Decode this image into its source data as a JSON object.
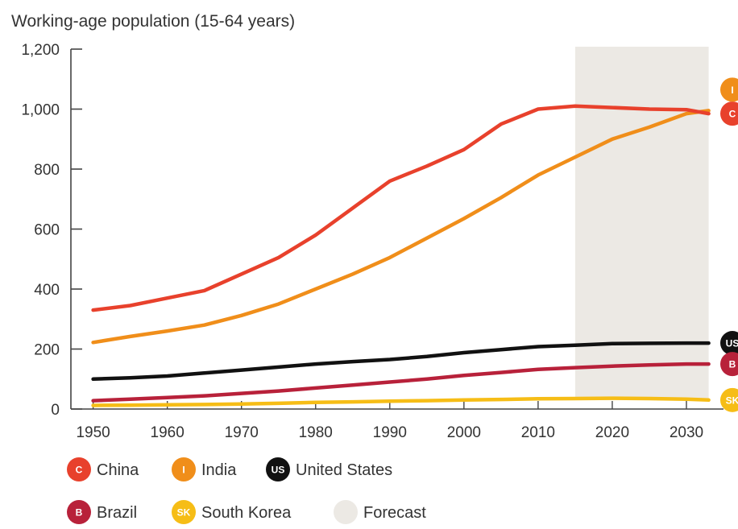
{
  "chart_data": {
    "type": "line",
    "title": "Working-age population (15-64 years)",
    "xlabel": "",
    "ylabel": "",
    "xlim": [
      1947,
      2035
    ],
    "ylim": [
      0,
      1200
    ],
    "x_ticks": [
      "1950",
      "1960",
      "1970",
      "1980",
      "1990",
      "2000",
      "2010",
      "2020",
      "2030"
    ],
    "y_ticks": [
      "0",
      "200",
      "400",
      "600",
      "800",
      "1,000",
      "1,200"
    ],
    "forecast": {
      "label": "Forecast",
      "start": 2015,
      "end": 2033,
      "color": "#ece9e4"
    },
    "x": [
      1950,
      1955,
      1960,
      1965,
      1970,
      1975,
      1980,
      1985,
      1990,
      1995,
      2000,
      2005,
      2010,
      2015,
      2020,
      2025,
      2030,
      2033
    ],
    "series": [
      {
        "name": "China",
        "marker": "C",
        "color": "#e8412c",
        "values": [
          330,
          345,
          370,
          395,
          450,
          505,
          580,
          670,
          760,
          810,
          865,
          950,
          1000,
          1010,
          1005,
          1000,
          998,
          985
        ]
      },
      {
        "name": "India",
        "marker": "I",
        "color": "#f08e1a",
        "values": [
          222,
          242,
          260,
          280,
          312,
          350,
          400,
          450,
          505,
          570,
          635,
          705,
          780,
          840,
          900,
          940,
          985,
          995
        ]
      },
      {
        "name": "United States",
        "marker": "US",
        "color": "#111111",
        "values": [
          100,
          104,
          110,
          120,
          130,
          140,
          150,
          158,
          165,
          175,
          188,
          198,
          208,
          213,
          218,
          219,
          220,
          220
        ]
      },
      {
        "name": "Brazil",
        "marker": "B",
        "color": "#b8213a",
        "values": [
          28,
          33,
          38,
          44,
          52,
          60,
          70,
          80,
          90,
          100,
          112,
          122,
          132,
          138,
          143,
          147,
          150,
          150
        ]
      },
      {
        "name": "South Korea",
        "marker": "SK",
        "color": "#f6bd16",
        "values": [
          12,
          13,
          14,
          15,
          17,
          19,
          22,
          24,
          26,
          28,
          30,
          32,
          34,
          35,
          36,
          35,
          33,
          30
        ]
      }
    ],
    "legend": [
      {
        "label": "China",
        "marker": "C",
        "color": "#e8412c"
      },
      {
        "label": "India",
        "marker": "I",
        "color": "#f08e1a"
      },
      {
        "label": "United States",
        "marker": "US",
        "color": "#111111"
      },
      {
        "label": "Brazil",
        "marker": "B",
        "color": "#b8213a"
      },
      {
        "label": "South Korea",
        "marker": "SK",
        "color": "#f6bd16"
      },
      {
        "label": "Forecast",
        "marker": "",
        "color": "#ece9e4"
      }
    ],
    "legend_position": "bottom",
    "grid": false
  }
}
